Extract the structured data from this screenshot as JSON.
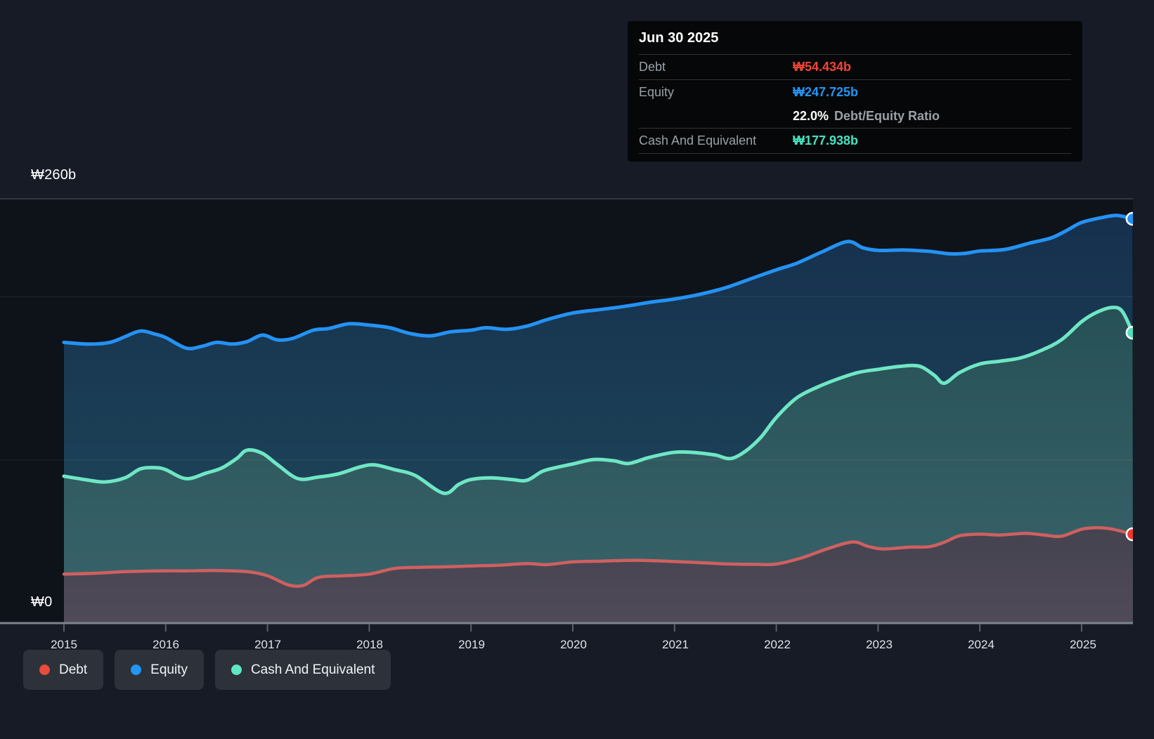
{
  "y_axis": {
    "top_label": "₩260b",
    "bottom_label": "₩0"
  },
  "x_axis": {
    "labels": [
      "2015",
      "2016",
      "2017",
      "2018",
      "2019",
      "2020",
      "2021",
      "2022",
      "2023",
      "2024",
      "2025"
    ]
  },
  "legend": {
    "items": [
      {
        "label": "Debt",
        "color": "#e74c3c"
      },
      {
        "label": "Equity",
        "color": "#2196f3"
      },
      {
        "label": "Cash And Equivalent",
        "color": "#5ee6c2"
      }
    ]
  },
  "tooltip": {
    "date": "Jun 30 2025",
    "debt_label": "Debt",
    "debt_value": "₩54.434b",
    "equity_label": "Equity",
    "equity_value": "₩247.725b",
    "ratio_value": "22.0%",
    "ratio_label": "Debt/Equity Ratio",
    "cash_label": "Cash And Equivalent",
    "cash_value": "₩177.938b"
  },
  "chart_data": {
    "type": "area",
    "title": "Debt to Equity history",
    "x_range": [
      2015,
      2025.5
    ],
    "ylabel": "₩ billions",
    "ylim": [
      0,
      260
    ],
    "y_axis_labels_shown": [
      "₩260b",
      "₩0"
    ],
    "gridline_values_billions": [
      260,
      200,
      100,
      0
    ],
    "legend_position": "bottom-left",
    "units": "KRW billions",
    "series": [
      {
        "name": "Equity",
        "color": "#2492f4",
        "dot_color": "#2492f4",
        "fill_top": "#16304d",
        "fill_bottom": "#1f4a5c",
        "end_value_billions": 247.725,
        "points": [
          [
            2015.0,
            172
          ],
          [
            2015.25,
            171
          ],
          [
            2015.45,
            172
          ],
          [
            2015.6,
            175.5
          ],
          [
            2015.75,
            179
          ],
          [
            2015.9,
            177
          ],
          [
            2016.0,
            175
          ],
          [
            2016.2,
            168.5
          ],
          [
            2016.35,
            169.5
          ],
          [
            2016.5,
            172
          ],
          [
            2016.65,
            171
          ],
          [
            2016.8,
            172.5
          ],
          [
            2016.95,
            176.5
          ],
          [
            2017.1,
            173.5
          ],
          [
            2017.25,
            174.5
          ],
          [
            2017.45,
            179.5
          ],
          [
            2017.6,
            180.5
          ],
          [
            2017.8,
            183.4
          ],
          [
            2018.0,
            182.6
          ],
          [
            2018.2,
            181
          ],
          [
            2018.4,
            177.5
          ],
          [
            2018.6,
            176
          ],
          [
            2018.8,
            178.5
          ],
          [
            2019.0,
            179.5
          ],
          [
            2019.15,
            181
          ],
          [
            2019.35,
            180
          ],
          [
            2019.55,
            182
          ],
          [
            2019.75,
            186
          ],
          [
            2020.0,
            190
          ],
          [
            2020.25,
            192
          ],
          [
            2020.5,
            194
          ],
          [
            2020.75,
            196.5
          ],
          [
            2021.0,
            198.6
          ],
          [
            2021.25,
            201.5
          ],
          [
            2021.5,
            205.5
          ],
          [
            2021.75,
            211
          ],
          [
            2022.0,
            216.5
          ],
          [
            2022.2,
            220.5
          ],
          [
            2022.45,
            227.5
          ],
          [
            2022.7,
            233.8
          ],
          [
            2022.85,
            230
          ],
          [
            2023.0,
            228.4
          ],
          [
            2023.25,
            228.6
          ],
          [
            2023.5,
            227.8
          ],
          [
            2023.7,
            226.3
          ],
          [
            2023.85,
            226.5
          ],
          [
            2024.0,
            228
          ],
          [
            2024.25,
            229
          ],
          [
            2024.5,
            233
          ],
          [
            2024.7,
            236
          ],
          [
            2024.85,
            240.5
          ],
          [
            2025.0,
            245.5
          ],
          [
            2025.2,
            248.5
          ],
          [
            2025.35,
            249.8
          ],
          [
            2025.5,
            247.725
          ]
        ]
      },
      {
        "name": "Cash And Equivalent",
        "color": "#6fe6c4",
        "dot_color": "#4fe0bd",
        "fill_top": "#265156",
        "fill_bottom": "#3a646b",
        "end_value_billions": 177.938,
        "points": [
          [
            2015.0,
            90
          ],
          [
            2015.2,
            88
          ],
          [
            2015.4,
            86.5
          ],
          [
            2015.6,
            89
          ],
          [
            2015.75,
            94.5
          ],
          [
            2015.9,
            95.2
          ],
          [
            2016.0,
            94
          ],
          [
            2016.2,
            88.5
          ],
          [
            2016.4,
            92
          ],
          [
            2016.55,
            95
          ],
          [
            2016.7,
            101
          ],
          [
            2016.8,
            106
          ],
          [
            2016.95,
            104
          ],
          [
            2017.1,
            97
          ],
          [
            2017.3,
            88.5
          ],
          [
            2017.5,
            89.5
          ],
          [
            2017.7,
            91.5
          ],
          [
            2017.9,
            95.5
          ],
          [
            2018.05,
            97
          ],
          [
            2018.25,
            94
          ],
          [
            2018.45,
            90.5
          ],
          [
            2018.73,
            79.6
          ],
          [
            2018.88,
            85
          ],
          [
            2019.0,
            88
          ],
          [
            2019.2,
            89
          ],
          [
            2019.4,
            88
          ],
          [
            2019.55,
            87.5
          ],
          [
            2019.7,
            93
          ],
          [
            2019.85,
            95.5
          ],
          [
            2020.0,
            97.5
          ],
          [
            2020.2,
            100.2
          ],
          [
            2020.4,
            99.5
          ],
          [
            2020.55,
            97.8
          ],
          [
            2020.75,
            101.5
          ],
          [
            2021.0,
            104.7
          ],
          [
            2021.2,
            104.5
          ],
          [
            2021.4,
            103
          ],
          [
            2021.55,
            100.8
          ],
          [
            2021.7,
            105.5
          ],
          [
            2021.85,
            114
          ],
          [
            2022.0,
            126
          ],
          [
            2022.2,
            138
          ],
          [
            2022.4,
            144.5
          ],
          [
            2022.6,
            149.5
          ],
          [
            2022.8,
            153.5
          ],
          [
            2023.0,
            155.5
          ],
          [
            2023.2,
            157.2
          ],
          [
            2023.4,
            157.5
          ],
          [
            2023.55,
            152
          ],
          [
            2023.65,
            147
          ],
          [
            2023.8,
            153.5
          ],
          [
            2024.0,
            158.8
          ],
          [
            2024.2,
            160.5
          ],
          [
            2024.4,
            162.5
          ],
          [
            2024.6,
            167
          ],
          [
            2024.8,
            173.5
          ],
          [
            2025.0,
            184.7
          ],
          [
            2025.15,
            190.5
          ],
          [
            2025.3,
            193.4
          ],
          [
            2025.4,
            191
          ],
          [
            2025.5,
            177.938
          ]
        ]
      },
      {
        "name": "Debt",
        "color": "#cf6060",
        "dot_color": "#ef382c",
        "fill_top": "#454350",
        "fill_bottom": "#4f4a58",
        "end_value_billions": 54.434,
        "points": [
          [
            2015.0,
            30
          ],
          [
            2015.3,
            30.5
          ],
          [
            2015.6,
            31.5
          ],
          [
            2015.9,
            32
          ],
          [
            2016.2,
            32
          ],
          [
            2016.5,
            32.2
          ],
          [
            2016.8,
            31.5
          ],
          [
            2017.0,
            29
          ],
          [
            2017.2,
            23.5
          ],
          [
            2017.35,
            23
          ],
          [
            2017.5,
            28
          ],
          [
            2017.75,
            29
          ],
          [
            2018.0,
            30
          ],
          [
            2018.25,
            33.5
          ],
          [
            2018.5,
            34.2
          ],
          [
            2018.75,
            34.5
          ],
          [
            2019.0,
            35
          ],
          [
            2019.3,
            35.5
          ],
          [
            2019.55,
            36.5
          ],
          [
            2019.75,
            35.8
          ],
          [
            2020.0,
            37.5
          ],
          [
            2020.3,
            38
          ],
          [
            2020.6,
            38.5
          ],
          [
            2020.9,
            38
          ],
          [
            2021.2,
            37.2
          ],
          [
            2021.5,
            36.3
          ],
          [
            2021.8,
            36
          ],
          [
            2022.0,
            36.2
          ],
          [
            2022.25,
            40
          ],
          [
            2022.5,
            45.5
          ],
          [
            2022.75,
            49.7
          ],
          [
            2022.9,
            47
          ],
          [
            2023.05,
            45.4
          ],
          [
            2023.3,
            46.5
          ],
          [
            2023.5,
            46.8
          ],
          [
            2023.65,
            49.5
          ],
          [
            2023.8,
            53.5
          ],
          [
            2024.0,
            54.5
          ],
          [
            2024.2,
            54
          ],
          [
            2024.45,
            55
          ],
          [
            2024.65,
            53.8
          ],
          [
            2024.8,
            53.2
          ],
          [
            2025.0,
            57.5
          ],
          [
            2025.15,
            58.4
          ],
          [
            2025.3,
            57.6
          ],
          [
            2025.5,
            54.434
          ]
        ]
      }
    ]
  }
}
